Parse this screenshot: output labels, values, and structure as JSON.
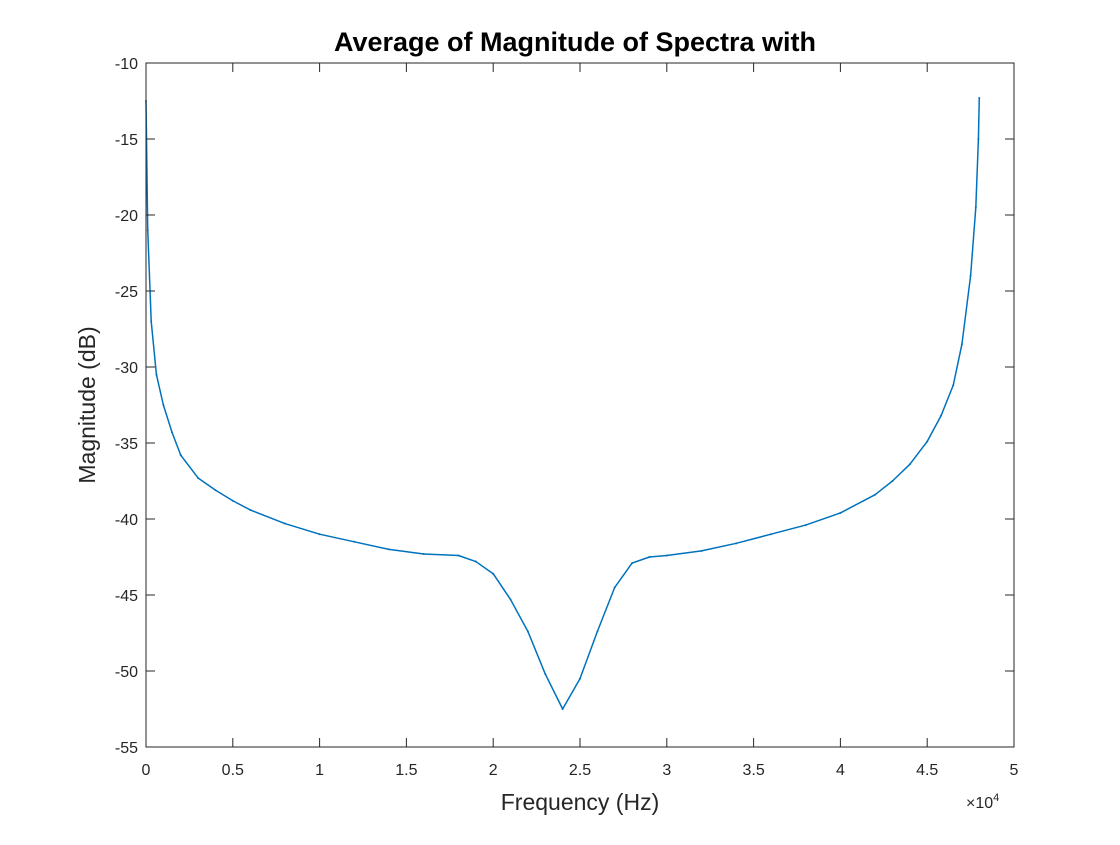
{
  "chart_data": {
    "type": "line",
    "title": "Average of Magnitude of Spectra with",
    "xlabel": "Frequency (Hz)",
    "ylabel": "Magnitude (dB)",
    "x_exponent_label": "×10",
    "x_exponent_power": "4",
    "xlim": [
      0,
      50000
    ],
    "ylim": [
      -55,
      -10
    ],
    "xticks": [
      0,
      5000,
      10000,
      15000,
      20000,
      25000,
      30000,
      35000,
      40000,
      45000,
      50000
    ],
    "xtick_labels": [
      "0",
      "0.5",
      "1",
      "1.5",
      "2",
      "2.5",
      "3",
      "3.5",
      "4",
      "4.5",
      "5"
    ],
    "yticks": [
      -55,
      -50,
      -45,
      -40,
      -35,
      -30,
      -25,
      -20,
      -15,
      -10
    ],
    "ytick_labels": [
      "-55",
      "-50",
      "-45",
      "-40",
      "-35",
      "-30",
      "-25",
      "-20",
      "-15",
      "-10"
    ],
    "grid": false,
    "legend": "none",
    "series": [
      {
        "color": "#0072BD",
        "x": [
          0,
          100,
          300,
          600,
          1000,
          1500,
          2000,
          3000,
          4000,
          5000,
          6000,
          8000,
          10000,
          12000,
          14000,
          16000,
          18000,
          19000,
          20000,
          21000,
          22000,
          23000,
          24000,
          25000,
          26000,
          27000,
          28000,
          29000,
          30000,
          32000,
          34000,
          36000,
          38000,
          40000,
          42000,
          43000,
          44000,
          45000,
          45800,
          46500,
          47000,
          47500,
          47800,
          47950,
          48000
        ],
        "y": [
          -12.5,
          -21,
          -27,
          -30.5,
          -32.5,
          -34.3,
          -35.8,
          -37.3,
          -38.1,
          -38.8,
          -39.4,
          -40.3,
          -41,
          -41.5,
          -42,
          -42.3,
          -42.4,
          -42.8,
          -43.6,
          -45.3,
          -47.4,
          -50.2,
          -52.5,
          -50.5,
          -47.4,
          -44.5,
          -42.9,
          -42.5,
          -42.4,
          -42.1,
          -41.6,
          -41,
          -40.4,
          -39.6,
          -38.4,
          -37.5,
          -36.4,
          -34.9,
          -33.2,
          -31.2,
          -28.5,
          -24,
          -19.5,
          -15,
          -12.3
        ]
      }
    ]
  }
}
